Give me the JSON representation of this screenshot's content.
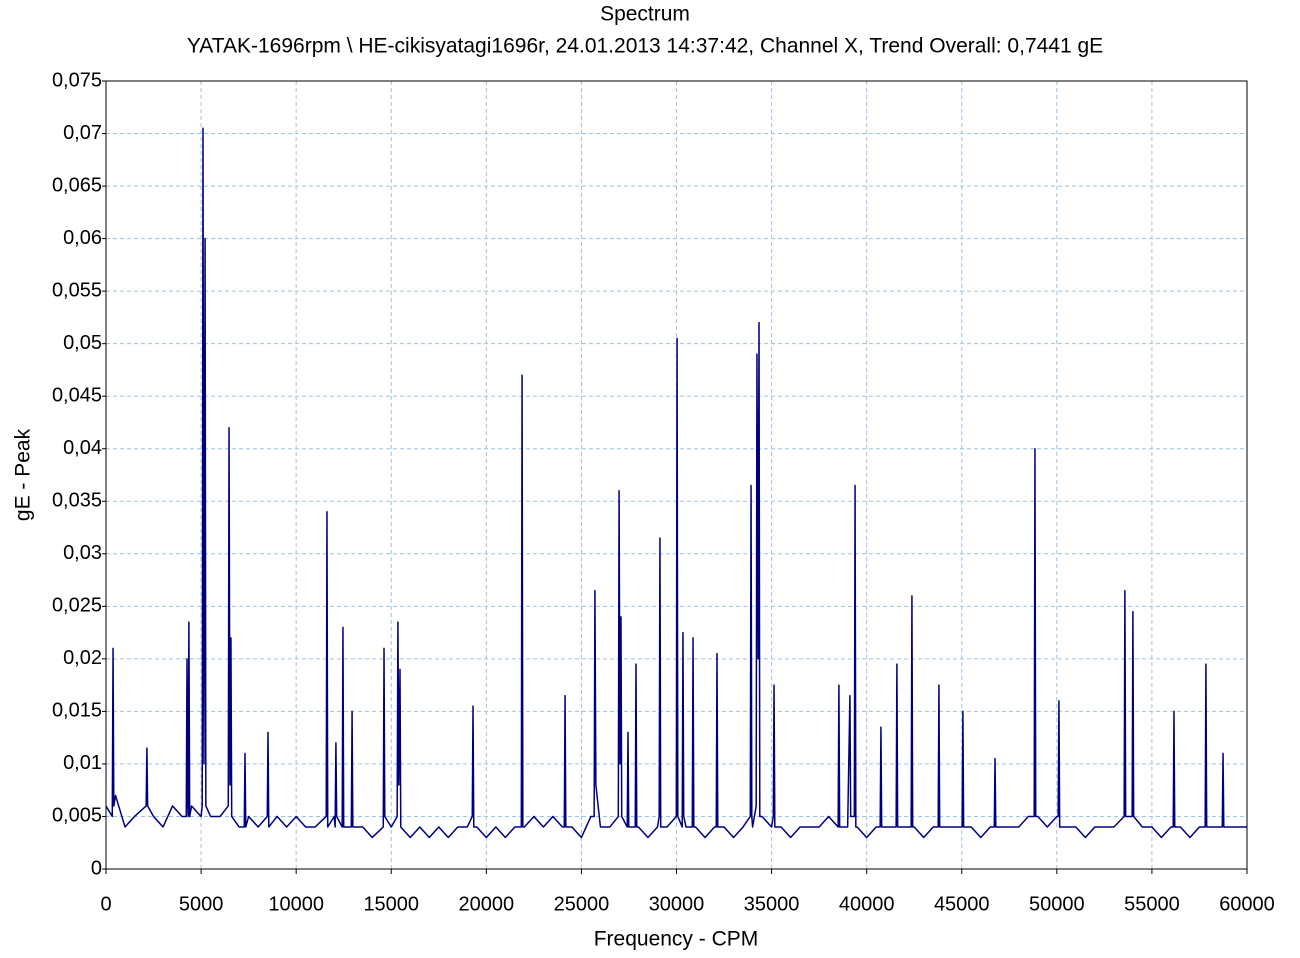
{
  "chart_data": {
    "type": "line",
    "title": "Spectrum",
    "subtitle": "YATAK-1696rpm \\ HE-cikisyatagi1696r, 24.01.2013 14:37:42, Channel X, Trend Overall: 0,7441 gE",
    "x_label": "Frequency - CPM",
    "y_label": "gE - Peak",
    "color": "#00007f",
    "grid": true,
    "xlim": [
      0,
      60000
    ],
    "xticks": [
      0,
      5000,
      10000,
      15000,
      20000,
      25000,
      30000,
      35000,
      40000,
      45000,
      50000,
      55000,
      60000
    ],
    "ylim": [
      0,
      0.075
    ],
    "yticks": [
      0,
      {
        "value": 0.005,
        "label": "0,005"
      },
      {
        "value": 0.01,
        "label": "0,01"
      },
      {
        "value": 0.015,
        "label": "0,015"
      },
      {
        "value": 0.02,
        "label": "0,02"
      },
      {
        "value": 0.025,
        "label": "0,025"
      },
      {
        "value": 0.03,
        "label": "0,03"
      },
      {
        "value": 0.035,
        "label": "0,035"
      },
      {
        "value": 0.04,
        "label": "0,04"
      },
      {
        "value": 0.045,
        "label": "0,045"
      },
      {
        "value": 0.05,
        "label": "0,05"
      },
      {
        "value": 0.055,
        "label": "0,055"
      },
      {
        "value": 0.06,
        "label": "0,06"
      },
      {
        "value": 0.065,
        "label": "0,065"
      },
      {
        "value": 0.07,
        "label": "0,07"
      },
      {
        "value": 0.075,
        "label": "0,075"
      }
    ],
    "x": [
      0,
      330,
      370,
      410,
      500,
      1000,
      1500,
      2110,
      2150,
      2190,
      2500,
      3000,
      3500,
      4000,
      4220,
      4260,
      4300,
      4320,
      4360,
      4400,
      4500,
      5000,
      5060,
      5100,
      5150,
      5210,
      5250,
      5500,
      6000,
      6430,
      6470,
      6520,
      6570,
      6610,
      7000,
      7270,
      7310,
      7350,
      7500,
      8000,
      8480,
      8520,
      8560,
      9000,
      9500,
      10000,
      10500,
      11000,
      11580,
      11620,
      11660,
      12000,
      12050,
      12090,
      12130,
      12420,
      12460,
      12500,
      12900,
      12940,
      12980,
      13500,
      14000,
      14580,
      14620,
      14660,
      15000,
      15310,
      15350,
      15400,
      15460,
      15500,
      16000,
      16500,
      17000,
      17500,
      18000,
      18500,
      19000,
      19260,
      19300,
      19340,
      19500,
      20000,
      20500,
      21000,
      21500,
      21840,
      21880,
      21920,
      22000,
      22500,
      23000,
      23500,
      24000,
      24100,
      24140,
      24180,
      24500,
      25000,
      25500,
      25670,
      25710,
      25760,
      26000,
      26500,
      26940,
      26980,
      27030,
      27080,
      27120,
      27410,
      27450,
      27490,
      27830,
      27870,
      27910,
      28000,
      28500,
      29000,
      29090,
      29130,
      29170,
      29500,
      29990,
      30030,
      30070,
      30300,
      30340,
      30380,
      30500,
      30830,
      30870,
      30910,
      31000,
      31500,
      32000,
      32090,
      32130,
      32170,
      32500,
      33000,
      33500,
      33880,
      33920,
      33960,
      34000,
      34190,
      34230,
      34290,
      34340,
      34380,
      34500,
      35000,
      35090,
      35130,
      35170,
      35500,
      36000,
      36500,
      37000,
      37500,
      38000,
      38500,
      38540,
      38580,
      39000,
      39120,
      39160,
      39350,
      39390,
      39430,
      39500,
      40000,
      40500,
      40710,
      40750,
      40790,
      41000,
      41550,
      41590,
      41630,
      42000,
      42340,
      42380,
      42420,
      42500,
      43000,
      43500,
      43760,
      43800,
      43840,
      44000,
      44500,
      45020,
      45060,
      45100,
      45500,
      46000,
      46500,
      46710,
      46750,
      46790,
      47000,
      47500,
      48000,
      48500,
      48810,
      48850,
      48890,
      49000,
      49500,
      50000,
      50070,
      50110,
      50150,
      50500,
      51000,
      51500,
      52000,
      52500,
      53000,
      53540,
      53580,
      53620,
      53960,
      54000,
      54040,
      54500,
      55000,
      55500,
      56000,
      56120,
      56160,
      56200,
      56500,
      57000,
      57500,
      57800,
      57840,
      57880,
      58000,
      58500,
      58700,
      58740,
      58780,
      59000,
      59500,
      60000
    ],
    "values": [
      0.006,
      0.005,
      0.021,
      0.006,
      0.007,
      0.004,
      0.005,
      0.006,
      0.0115,
      0.006,
      0.005,
      0.004,
      0.006,
      0.005,
      0.005,
      0.02,
      0.006,
      0.005,
      0.0235,
      0.005,
      0.006,
      0.005,
      0.006,
      0.0705,
      0.01,
      0.06,
      0.006,
      0.005,
      0.005,
      0.006,
      0.042,
      0.008,
      0.022,
      0.005,
      0.004,
      0.004,
      0.011,
      0.004,
      0.005,
      0.004,
      0.005,
      0.013,
      0.004,
      0.005,
      0.004,
      0.005,
      0.004,
      0.004,
      0.005,
      0.034,
      0.004,
      0.005,
      0.004,
      0.012,
      0.005,
      0.004,
      0.023,
      0.004,
      0.004,
      0.015,
      0.004,
      0.004,
      0.003,
      0.004,
      0.021,
      0.005,
      0.004,
      0.005,
      0.0235,
      0.008,
      0.019,
      0.004,
      0.003,
      0.004,
      0.003,
      0.004,
      0.003,
      0.004,
      0.004,
      0.005,
      0.0155,
      0.004,
      0.004,
      0.003,
      0.004,
      0.003,
      0.004,
      0.004,
      0.047,
      0.004,
      0.004,
      0.005,
      0.004,
      0.005,
      0.004,
      0.004,
      0.0165,
      0.004,
      0.004,
      0.003,
      0.005,
      0.005,
      0.0265,
      0.008,
      0.004,
      0.004,
      0.005,
      0.036,
      0.01,
      0.024,
      0.005,
      0.004,
      0.013,
      0.004,
      0.004,
      0.0195,
      0.004,
      0.004,
      0.003,
      0.004,
      0.005,
      0.0315,
      0.004,
      0.004,
      0.005,
      0.0505,
      0.005,
      0.004,
      0.0225,
      0.005,
      0.004,
      0.004,
      0.022,
      0.004,
      0.004,
      0.003,
      0.004,
      0.004,
      0.0205,
      0.004,
      0.004,
      0.003,
      0.004,
      0.005,
      0.0365,
      0.005,
      0.004,
      0.006,
      0.049,
      0.02,
      0.052,
      0.005,
      0.005,
      0.004,
      0.005,
      0.0175,
      0.004,
      0.004,
      0.003,
      0.004,
      0.004,
      0.004,
      0.005,
      0.004,
      0.0175,
      0.004,
      0.004,
      0.0165,
      0.005,
      0.005,
      0.0365,
      0.004,
      0.004,
      0.003,
      0.004,
      0.004,
      0.0135,
      0.004,
      0.004,
      0.004,
      0.0195,
      0.004,
      0.004,
      0.004,
      0.026,
      0.004,
      0.004,
      0.003,
      0.004,
      0.004,
      0.0175,
      0.004,
      0.004,
      0.004,
      0.004,
      0.015,
      0.004,
      0.004,
      0.003,
      0.004,
      0.004,
      0.0105,
      0.004,
      0.004,
      0.004,
      0.004,
      0.005,
      0.005,
      0.04,
      0.005,
      0.005,
      0.004,
      0.005,
      0.005,
      0.016,
      0.004,
      0.004,
      0.004,
      0.003,
      0.004,
      0.004,
      0.004,
      0.005,
      0.0265,
      0.005,
      0.005,
      0.0245,
      0.005,
      0.004,
      0.004,
      0.003,
      0.004,
      0.004,
      0.015,
      0.004,
      0.004,
      0.003,
      0.004,
      0.004,
      0.0195,
      0.004,
      0.004,
      0.004,
      0.004,
      0.011,
      0.004,
      0.004,
      0.004,
      0.004
    ]
  }
}
